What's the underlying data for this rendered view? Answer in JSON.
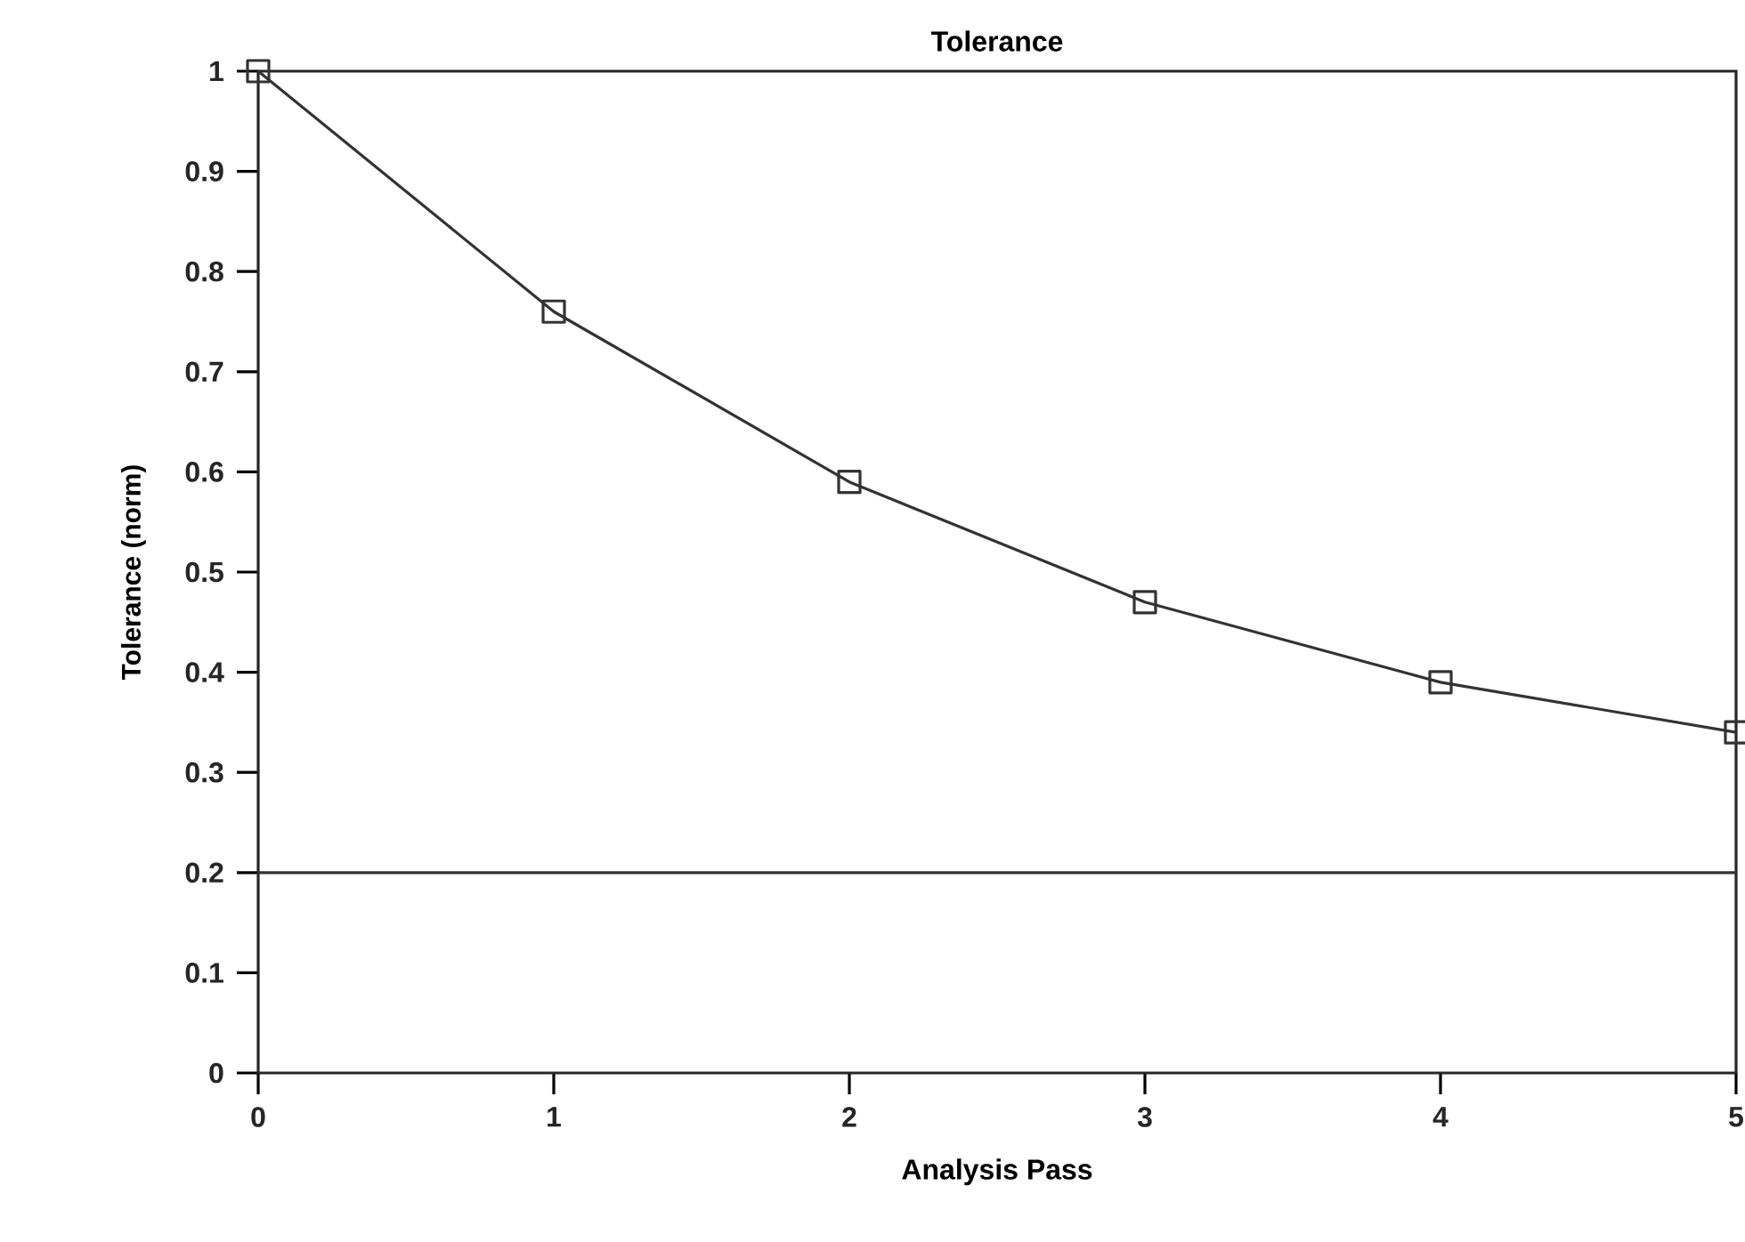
{
  "chart_data": {
    "type": "line",
    "title": "Tolerance",
    "xlabel": "Analysis Pass",
    "ylabel": "Tolerance  (norm)",
    "x": [
      0,
      1,
      2,
      3,
      4,
      5
    ],
    "series": [
      {
        "color": "#333333",
        "values": [
          1.0,
          0.76,
          0.59,
          0.47,
          0.39,
          0.34
        ]
      }
    ],
    "xlim": [
      0,
      5
    ],
    "ylim": [
      0,
      1
    ],
    "xticks": [
      0,
      1,
      2,
      3,
      4,
      5
    ],
    "yticks": [
      0,
      0.1,
      0.2,
      0.3,
      0.4,
      0.5,
      0.6,
      0.7,
      0.8,
      0.9,
      1
    ],
    "ref_lines": [
      {
        "axis": "y",
        "value": 0.2,
        "color": "#333333",
        "line_style": "solid"
      }
    ],
    "marker": "square",
    "line_style": "solid"
  }
}
